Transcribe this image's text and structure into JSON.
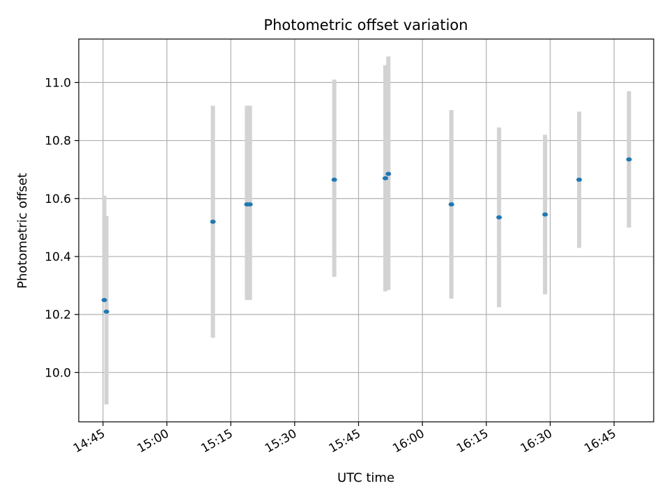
{
  "chart_data": {
    "type": "scatter",
    "title": "Photometric offset variation",
    "xlabel": "UTC time",
    "ylabel": "Photometric offset",
    "x_ticks": [
      "14:45",
      "15:00",
      "15:15",
      "15:30",
      "15:45",
      "16:00",
      "16:15",
      "16:30",
      "16:45"
    ],
    "y_ticks": [
      "10.0",
      "10.2",
      "10.4",
      "10.6",
      "10.8",
      "11.0"
    ],
    "xlim": [
      "14:39:18",
      "16:54:18"
    ],
    "ylim": [
      9.83,
      11.15
    ],
    "grid": true,
    "colors": {
      "marker": "#1f77b4",
      "error_bar": "#d3d3d3",
      "grid": "#b0b0b0",
      "axes": "#000000"
    },
    "points": [
      {
        "x": "14:45:18",
        "y": 10.25,
        "err_low": 10.25,
        "err_high": 10.61
      },
      {
        "x": "14:45:48",
        "y": 10.21,
        "err_low": 9.89,
        "err_high": 10.54
      },
      {
        "x": "15:10:48",
        "y": 10.52,
        "err_low": 10.12,
        "err_high": 10.92
      },
      {
        "x": "15:18:48",
        "y": 10.58,
        "err_low": 10.25,
        "err_high": 10.92
      },
      {
        "x": "15:19:30",
        "y": 10.58,
        "err_low": 10.25,
        "err_high": 10.92
      },
      {
        "x": "15:39:18",
        "y": 10.665,
        "err_low": 10.33,
        "err_high": 11.01
      },
      {
        "x": "15:51:18",
        "y": 10.67,
        "err_low": 10.28,
        "err_high": 11.06
      },
      {
        "x": "15:52:00",
        "y": 10.685,
        "err_low": 10.285,
        "err_high": 11.09
      },
      {
        "x": "16:06:48",
        "y": 10.58,
        "err_low": 10.255,
        "err_high": 10.905
      },
      {
        "x": "16:18:00",
        "y": 10.535,
        "err_low": 10.225,
        "err_high": 10.845
      },
      {
        "x": "16:28:48",
        "y": 10.545,
        "err_low": 10.27,
        "err_high": 10.82
      },
      {
        "x": "16:36:48",
        "y": 10.665,
        "err_low": 10.43,
        "err_high": 10.9
      },
      {
        "x": "16:48:30",
        "y": 10.735,
        "err_low": 10.5,
        "err_high": 10.97
      }
    ]
  }
}
